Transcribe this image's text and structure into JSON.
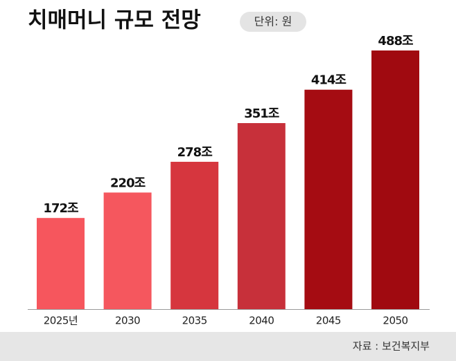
{
  "chart_data": {
    "type": "bar",
    "title": "치매머니 규모 전망",
    "unit": "단위: 원",
    "source": "자료 : 보건복지부",
    "categories": [
      "2025년",
      "2030",
      "2035",
      "2040",
      "2045",
      "2050"
    ],
    "values": [
      172,
      220,
      278,
      351,
      414,
      488
    ],
    "value_labels": [
      "172조",
      "220조",
      "278조",
      "351조",
      "414조",
      "488조"
    ],
    "colors": [
      "#f6565d",
      "#f5575e",
      "#d6363e",
      "#c7303a",
      "#a50c12",
      "#a00a10"
    ]
  }
}
